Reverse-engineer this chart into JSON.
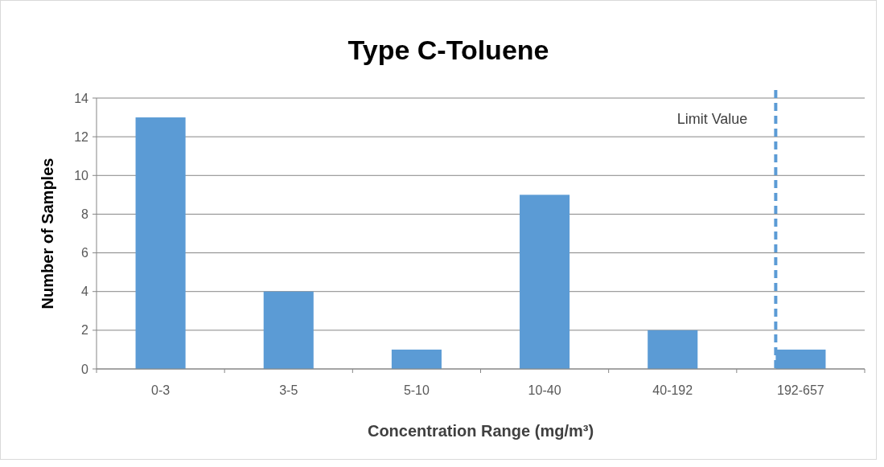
{
  "chart_data": {
    "type": "bar",
    "title": "Type C-Toluene",
    "xlabel": "Concentration Range (mg/m³)",
    "ylabel": "Number of Samples",
    "categories": [
      "0-3",
      "3-5",
      "5-10",
      "10-40",
      "40-192",
      "192-657"
    ],
    "values": [
      13,
      4,
      1,
      9,
      2,
      1
    ],
    "color": "#5b9bd5",
    "ylim": [
      0,
      14
    ],
    "yticks": [
      0,
      2,
      4,
      6,
      8,
      10,
      12,
      14
    ],
    "grid": "y",
    "ref_lines": [
      {
        "axis": "x",
        "value": "192-657",
        "label": "Limit Value",
        "color": "#5b9bd5",
        "line_style": "dashed"
      }
    ]
  }
}
